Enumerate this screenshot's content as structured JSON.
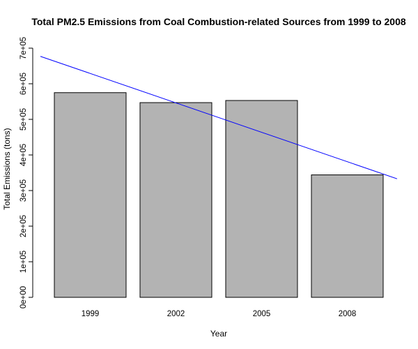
{
  "chart_data": {
    "type": "bar",
    "title": "Total PM2.5 Emissions from Coal Combustion-related Sources from 1999 to 2008",
    "xlabel": "Year",
    "ylabel": "Total Emissions (tons)",
    "categories": [
      "1999",
      "2002",
      "2005",
      "2008"
    ],
    "values": [
      575000,
      547000,
      553000,
      344000
    ],
    "ylim": [
      0,
      700000
    ],
    "yticks": [
      0,
      100000,
      200000,
      300000,
      400000,
      500000,
      600000,
      700000
    ],
    "ytick_labels": [
      "0e+00",
      "1e+05",
      "2e+05",
      "3e+05",
      "4e+05",
      "5e+05",
      "6e+05",
      "7e+05"
    ],
    "trend_line": {
      "start_value": 677000,
      "end_value": 333000,
      "color": "#0000ff"
    },
    "bar_color": "#b3b3b3",
    "grid": false
  }
}
